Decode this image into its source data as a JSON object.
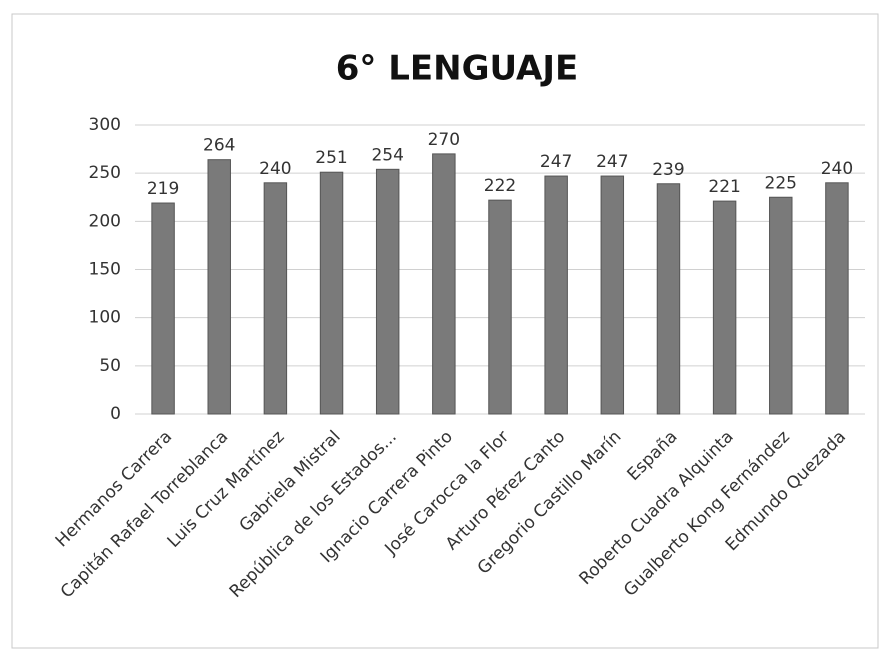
{
  "chart_data": {
    "type": "bar",
    "title": "6° LENGUAJE",
    "categories": [
      "Hermanos Carrera",
      "Capitán Rafael Torreblanca",
      "Luis Cruz Martínez",
      "Gabriela Mistral",
      "República de los Estados...",
      "Ignacio Carrera Pinto",
      "José Carocca la Flor",
      "Arturo Pérez Canto",
      "Gregorio Castillo Marín",
      "España",
      "Roberto Cuadra Alquinta",
      "Gualberto Kong Fernández",
      "Edmundo Quezada"
    ],
    "values": [
      219,
      264,
      240,
      251,
      254,
      270,
      222,
      247,
      247,
      239,
      221,
      225,
      240
    ],
    "color": "#7a7a7a",
    "ylim": [
      0,
      300
    ],
    "yticks": [
      0,
      50,
      100,
      150,
      200,
      250,
      300
    ],
    "grid": true
  }
}
